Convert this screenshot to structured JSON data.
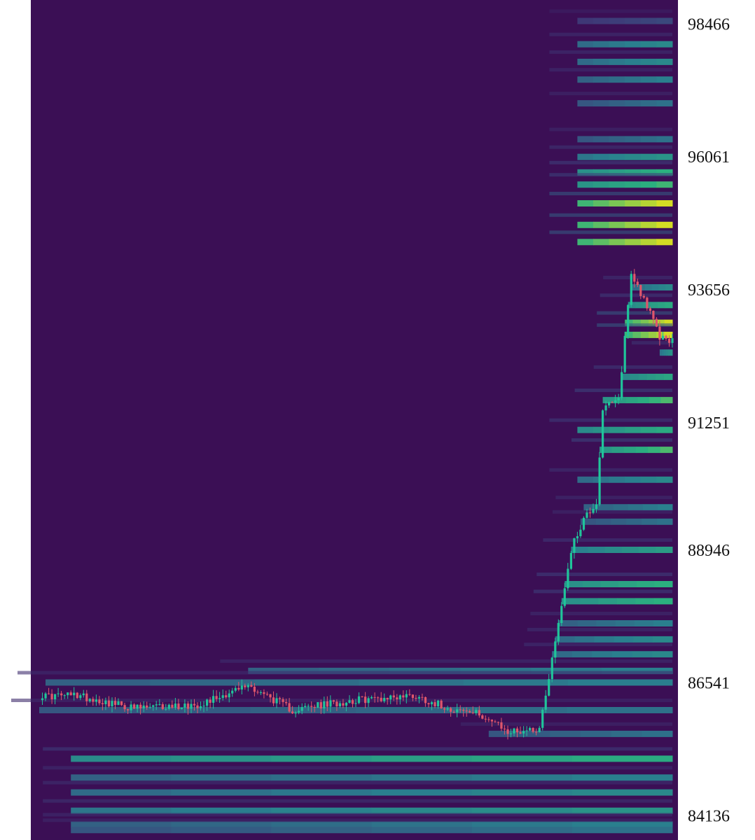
{
  "chart_data": {
    "type": "heatmap",
    "title": "",
    "xlabel": "",
    "ylabel": "",
    "ylim": [
      83700,
      98900
    ],
    "grid": false,
    "legend": "none",
    "y_ticks": [
      {
        "value": 98466,
        "label": "98466"
      },
      {
        "value": 96061,
        "label": "96061"
      },
      {
        "value": 93656,
        "label": "93656"
      },
      {
        "value": 91251,
        "label": "91251"
      },
      {
        "value": 88946,
        "label": "88946"
      },
      {
        "value": 86541,
        "label": "86541"
      },
      {
        "value": 84136,
        "label": "84136"
      }
    ],
    "colors": {
      "background": "#3b0f55",
      "candle_up": "#20c49a",
      "candle_down": "#e0566b",
      "heat_low": "#3e3a78",
      "heat_mid": "#2a7f8e",
      "heat_high": "#2bb07f",
      "heat_max": "#d4dc24"
    },
    "price_series": {
      "name": "",
      "points": 200,
      "segments": [
        [
          0,
          86300
        ],
        [
          12,
          86320
        ],
        [
          30,
          86080
        ],
        [
          50,
          86150
        ],
        [
          66,
          86500
        ],
        [
          80,
          86050
        ],
        [
          98,
          86220
        ],
        [
          118,
          86320
        ],
        [
          130,
          86080
        ],
        [
          140,
          85960
        ],
        [
          148,
          85650
        ],
        [
          158,
          85720
        ],
        [
          163,
          87300
        ],
        [
          168,
          88950
        ],
        [
          172,
          89520
        ],
        [
          176,
          89800
        ],
        [
          178,
          91500
        ],
        [
          183,
          91650
        ],
        [
          187,
          93950
        ],
        [
          191,
          93500
        ],
        [
          196,
          92800
        ],
        [
          200,
          92750
        ]
      ]
    },
    "liquidity_levels": [
      {
        "price": 98520,
        "intensity": 0.3
      },
      {
        "price": 98100,
        "intensity": 0.55
      },
      {
        "price": 97780,
        "intensity": 0.55
      },
      {
        "price": 97460,
        "intensity": 0.5
      },
      {
        "price": 97030,
        "intensity": 0.45
      },
      {
        "price": 96380,
        "intensity": 0.45
      },
      {
        "price": 96060,
        "intensity": 0.6
      },
      {
        "price": 95780,
        "intensity": 0.75
      },
      {
        "price": 95560,
        "intensity": 0.78
      },
      {
        "price": 95220,
        "intensity": 1.0
      },
      {
        "price": 94830,
        "intensity": 1.0
      },
      {
        "price": 94520,
        "intensity": 1.0
      },
      {
        "price": 93700,
        "intensity": 0.55
      },
      {
        "price": 93380,
        "intensity": 0.72
      },
      {
        "price": 93060,
        "intensity": 1.0
      },
      {
        "price": 92840,
        "intensity": 1.0
      },
      {
        "price": 92520,
        "intensity": 0.6
      },
      {
        "price": 92080,
        "intensity": 0.7
      },
      {
        "price": 91660,
        "intensity": 0.8
      },
      {
        "price": 91120,
        "intensity": 0.72
      },
      {
        "price": 90760,
        "intensity": 0.8
      },
      {
        "price": 90220,
        "intensity": 0.55
      },
      {
        "price": 89720,
        "intensity": 0.5
      },
      {
        "price": 89460,
        "intensity": 0.45
      },
      {
        "price": 88950,
        "intensity": 0.65
      },
      {
        "price": 88330,
        "intensity": 0.75
      },
      {
        "price": 88020,
        "intensity": 0.75
      },
      {
        "price": 87620,
        "intensity": 0.5
      },
      {
        "price": 87330,
        "intensity": 0.55
      },
      {
        "price": 87060,
        "intensity": 0.55
      },
      {
        "price": 86760,
        "intensity": 0.5
      },
      {
        "price": 86550,
        "intensity": 0.5
      },
      {
        "price": 86050,
        "intensity": 0.45
      },
      {
        "price": 85620,
        "intensity": 0.45
      },
      {
        "price": 85170,
        "intensity": 0.72
      },
      {
        "price": 84830,
        "intensity": 0.5
      },
      {
        "price": 84560,
        "intensity": 0.55
      },
      {
        "price": 84230,
        "intensity": 0.6
      },
      {
        "price": 83980,
        "intensity": 0.5
      },
      {
        "price": 83880,
        "intensity": 0.45
      }
    ]
  }
}
